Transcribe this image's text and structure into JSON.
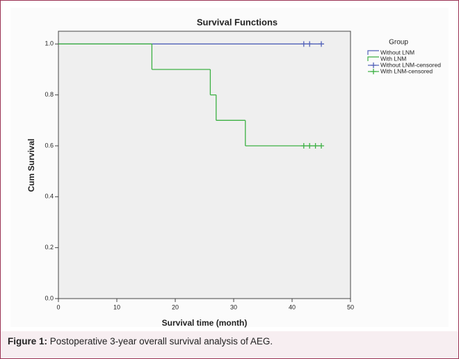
{
  "chart_data": {
    "type": "survival",
    "title": "Survival Functions",
    "x_label": "Survival time (month)",
    "y_label": "Cum Survival",
    "xlim": [
      0,
      50
    ],
    "xticks": [
      0,
      10,
      20,
      30,
      40,
      50
    ],
    "ylim": [
      0,
      1.05
    ],
    "yticks": [
      {
        "value": 0,
        "label": "0.0"
      },
      0.2,
      0.4,
      0.6,
      0.8,
      {
        "value": 1,
        "label": "1.0"
      }
    ],
    "legend_title": "Group",
    "legend": "right",
    "series": [
      {
        "name": "Without LNM",
        "color": "#5060b8",
        "marker": "step",
        "x": [
          0,
          45
        ],
        "values": [
          1.0,
          1.0
        ]
      },
      {
        "name": "With LNM",
        "color": "#3cb043",
        "marker": "step",
        "x": [
          0,
          16,
          26,
          27,
          32,
          45
        ],
        "values": [
          1.0,
          0.9,
          0.8,
          0.7,
          0.6,
          0.6
        ]
      },
      {
        "name": "Without LNM-censored",
        "color": "#5060b8",
        "marker": "plus",
        "x": [
          42,
          43,
          45
        ],
        "values": [
          1.0,
          1.0,
          1.0
        ]
      },
      {
        "name": "With LNM-censored",
        "color": "#3cb043",
        "marker": "plus",
        "x": [
          42,
          43,
          44,
          45
        ],
        "values": [
          0.6,
          0.6,
          0.6,
          0.6
        ]
      }
    ]
  },
  "caption": {
    "label": "Figure 1:",
    "text": "Postoperative 3-year overall survival analysis of AEG."
  }
}
